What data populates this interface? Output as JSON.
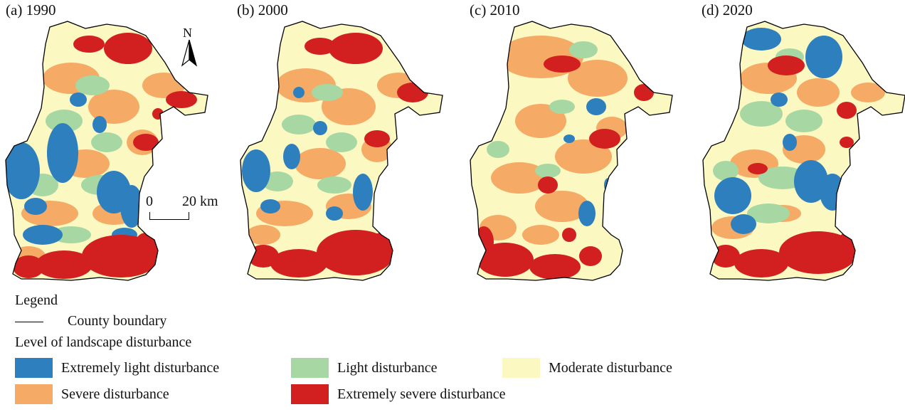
{
  "panels": [
    {
      "title": "(a) 1990"
    },
    {
      "title": "(b) 2000"
    },
    {
      "title": "(c) 2010"
    },
    {
      "title": "(d) 2020"
    }
  ],
  "north_arrow": {
    "label": "N"
  },
  "scale_bar": {
    "start": "0",
    "end": "20 km"
  },
  "legend": {
    "title": "Legend",
    "boundary_label": "County boundary",
    "levels_title": "Level of landscape disturbance",
    "levels": [
      {
        "label": "Extremely light disturbance",
        "color": "#2e7fbd"
      },
      {
        "label": "Light disturbance",
        "color": "#a7d8a3"
      },
      {
        "label": "Moderate disturbance",
        "color": "#fbf8c2"
      },
      {
        "label": "Severe disturbance",
        "color": "#f5aa66"
      },
      {
        "label": "Extremely severe disturbance",
        "color": "#d1201f"
      }
    ]
  }
}
